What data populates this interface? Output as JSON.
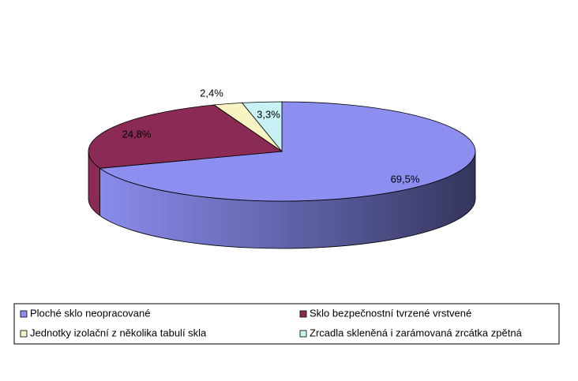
{
  "chart_data": {
    "type": "pie",
    "categories": [
      "Ploché sklo neopracované",
      "Sklo bezpečnostní tvrzené vrstvené",
      "Jednotky izolační z několika tabulí skla",
      "Zrcadla skleněná i zarámovaná zrcátka zpětná"
    ],
    "values": [
      69.5,
      24.8,
      2.4,
      3.3
    ],
    "value_labels": [
      "69,5%",
      "24,8%",
      "2,4%",
      "3,3%"
    ],
    "colors": [
      "#8c8ef0",
      "#8b2a55",
      "#f8f3c2",
      "#c8f2f5"
    ],
    "legend": "bottom"
  }
}
